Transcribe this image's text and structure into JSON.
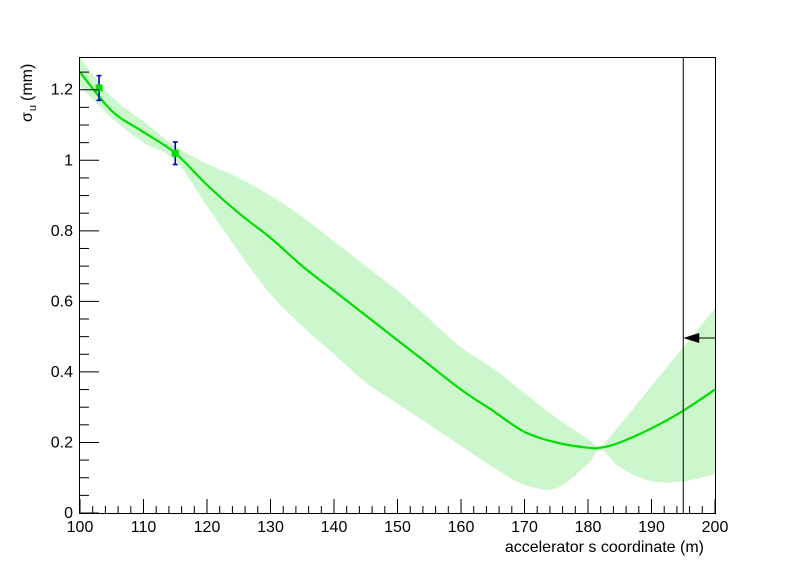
{
  "chart_data": {
    "type": "line",
    "xlabel": "accelerator s coordinate (m)",
    "ylabel": {
      "symbol": "σ",
      "subscript": "u",
      "unit": "(mm)"
    },
    "xlim": [
      100,
      200
    ],
    "ylim": [
      0,
      1.29
    ],
    "x_ticks": [
      "100",
      "110",
      "120",
      "130",
      "140",
      "150",
      "160",
      "170",
      "180",
      "190",
      "200"
    ],
    "y_ticks": [
      "0",
      "0.2",
      "0.4",
      "0.6",
      "0.8",
      "1",
      "1.2"
    ],
    "colors": {
      "fit": "#00dd00",
      "band": "#ccf7cc",
      "errorbar": "#0000cc",
      "marker": "#00dd00",
      "axis": "#000000"
    },
    "fit_curve": {
      "x": [
        100,
        105,
        110,
        115,
        120,
        125,
        130,
        135,
        140,
        145,
        150,
        155,
        160,
        165,
        170,
        175,
        180,
        182,
        185,
        190,
        195,
        200
      ],
      "y": [
        1.25,
        1.14,
        1.08,
        1.02,
        0.93,
        0.85,
        0.78,
        0.7,
        0.63,
        0.56,
        0.49,
        0.42,
        0.35,
        0.29,
        0.23,
        0.2,
        0.185,
        0.185,
        0.2,
        0.24,
        0.29,
        0.35
      ]
    },
    "band_upper": {
      "x": [
        100,
        105,
        110,
        115,
        120,
        125,
        130,
        135,
        140,
        145,
        150,
        155,
        160,
        165,
        170,
        175,
        180,
        182,
        185,
        190,
        195,
        200
      ],
      "y": [
        1.29,
        1.18,
        1.11,
        1.04,
        0.99,
        0.95,
        0.9,
        0.84,
        0.77,
        0.7,
        0.63,
        0.55,
        0.47,
        0.41,
        0.34,
        0.27,
        0.21,
        0.19,
        0.25,
        0.36,
        0.47,
        0.58
      ]
    },
    "band_lower": {
      "x": [
        100,
        105,
        110,
        115,
        120,
        125,
        130,
        135,
        140,
        145,
        150,
        155,
        160,
        165,
        170,
        175,
        180,
        182,
        185,
        190,
        195,
        200
      ],
      "y": [
        1.21,
        1.12,
        1.05,
        1.0,
        0.87,
        0.74,
        0.62,
        0.53,
        0.45,
        0.37,
        0.31,
        0.25,
        0.19,
        0.13,
        0.08,
        0.07,
        0.14,
        0.18,
        0.13,
        0.09,
        0.09,
        0.11
      ]
    },
    "measurements": [
      {
        "x": 103,
        "y": 1.205,
        "err": 0.035
      },
      {
        "x": 115,
        "y": 1.02,
        "err": 0.032
      }
    ],
    "vertical_line_x": 195,
    "arrow": {
      "y": 0.496,
      "direction": "left"
    }
  }
}
